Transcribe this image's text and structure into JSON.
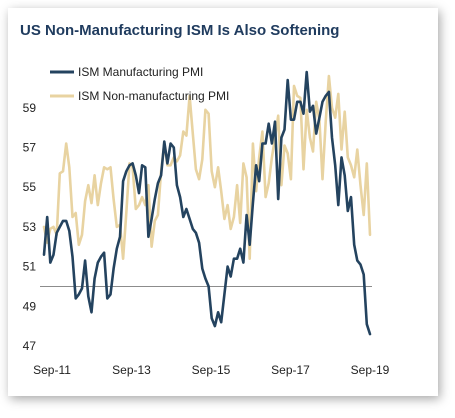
{
  "title": "US Non-Manufacturing ISM Is Also Softening",
  "colors": {
    "manufacturing": "#24435f",
    "non_manufacturing": "#e8d3a1",
    "reference_line": "#8c8c8c"
  },
  "chart_data": {
    "type": "line",
    "title": "US Non-Manufacturing ISM Is Also Softening",
    "xlabel": "",
    "ylabel": "",
    "x_start": "Sep-11",
    "x_end": "Sep-19",
    "ylim": [
      47,
      60.5
    ],
    "yticks": [
      "47",
      "49",
      "51",
      "53",
      "55",
      "57",
      "59"
    ],
    "xticks": [
      "Sep-11",
      "Sep-13",
      "Sep-15",
      "Sep-17",
      "Sep-19"
    ],
    "reference_line": 50,
    "grid": false,
    "legend_position": "top-left",
    "series": [
      {
        "name": "ISM Manufacturing PMI",
        "values": [
          51.6,
          53.5,
          51.2,
          51.6,
          52.7,
          53.0,
          53.3,
          53.3,
          52.8,
          51.5,
          49.4,
          49.6,
          49.9,
          51.3,
          49.5,
          48.7,
          50.4,
          51.2,
          51.5,
          51.7,
          49.4,
          49.6,
          50.9,
          51.9,
          52.5,
          55.3,
          55.8,
          56.1,
          56.2,
          55.6,
          54.7,
          56.1,
          56.0,
          52.5,
          53.4,
          54.4,
          55.2,
          55.6,
          57.3,
          56.2,
          57.2,
          57.0,
          55.1,
          54.5,
          53.5,
          53.9,
          53.4,
          52.9,
          52.7,
          52.2,
          50.9,
          50.4,
          50.0,
          48.4,
          48.0,
          48.7,
          48.2,
          49.6,
          51.0,
          50.5,
          51.4,
          51.4,
          51.9,
          51.2,
          53.6,
          52.1,
          54.2,
          56.1,
          55.3,
          57.2,
          57.2,
          58.2,
          57.2,
          58.3,
          54.4,
          57.5,
          57.9,
          60.4,
          58.4,
          58.4,
          59.3,
          59.3,
          58.7,
          60.8,
          58.8,
          59.1,
          57.7,
          58.5,
          59.3,
          59.6,
          59.8,
          57.5,
          56.1,
          54.1,
          56.5,
          55.6,
          53.8,
          54.5,
          52.1,
          51.3,
          51.1,
          50.6,
          48.1,
          47.6
        ]
      },
      {
        "name": "ISM Non-manufacturing PMI",
        "values": [
          53.0,
          52.2,
          52.9,
          53.0,
          52.6,
          55.7,
          55.8,
          57.2,
          56.0,
          53.5,
          53.7,
          52.1,
          52.6,
          54.3,
          55.1,
          54.2,
          55.6,
          54.1,
          55.2,
          56.0,
          55.9,
          56.0,
          54.4,
          53.0,
          53.1,
          51.4,
          53.7,
          56.2,
          56.0,
          53.9,
          54.1,
          54.5,
          54.1,
          55.1,
          52.0,
          53.3,
          53.6,
          55.8,
          57.2,
          56.1,
          56.1,
          56.5,
          56.3,
          56.6,
          57.8,
          57.6,
          59.6,
          57.7,
          55.9,
          55.4,
          56.4,
          58.9,
          58.7,
          55.8,
          55.0,
          56.0,
          54.8,
          53.4,
          54.1,
          52.9,
          53.5,
          55.1,
          53.2,
          56.2,
          55.5,
          51.4,
          57.2,
          54.8,
          56.5,
          57.8,
          54.5,
          55.2,
          56.5,
          57.5,
          58.6,
          55.1,
          57.1,
          56.7,
          55.4,
          60.1,
          59.6,
          59.5,
          55.9,
          58.9,
          57.5,
          56.8,
          59.3,
          58.4,
          55.4,
          58.3,
          60.6,
          59.0,
          58.5,
          59.7,
          56.9,
          58.8,
          56.5,
          56.1,
          55.5,
          56.9,
          55.1,
          53.6,
          56.2,
          52.6
        ]
      }
    ]
  }
}
